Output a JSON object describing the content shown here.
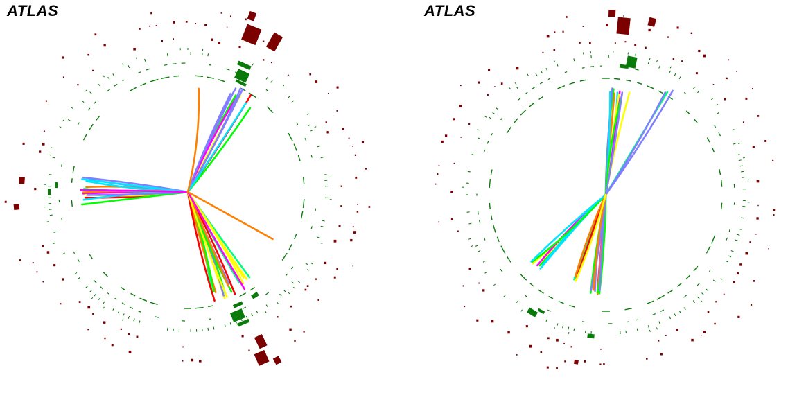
{
  "panels": [
    {
      "label": "ATLAS",
      "description_colors": {
        "calorimeter": "#7b0000",
        "tracker": "#0a7a0a"
      }
    },
    {
      "label": "ATLAS",
      "description_colors": {
        "calorimeter": "#7b0000",
        "tracker": "#0a7a0a"
      }
    }
  ],
  "colors": {
    "calorimeter": "#7b0000",
    "tracker": "#0a7a0a",
    "track_palette": [
      "#ff0000",
      "#ff7f00",
      "#00ff00",
      "#00e5ff",
      "#ff00ff",
      "#ffff00",
      "#7f7fff",
      "#00ff7f"
    ]
  }
}
